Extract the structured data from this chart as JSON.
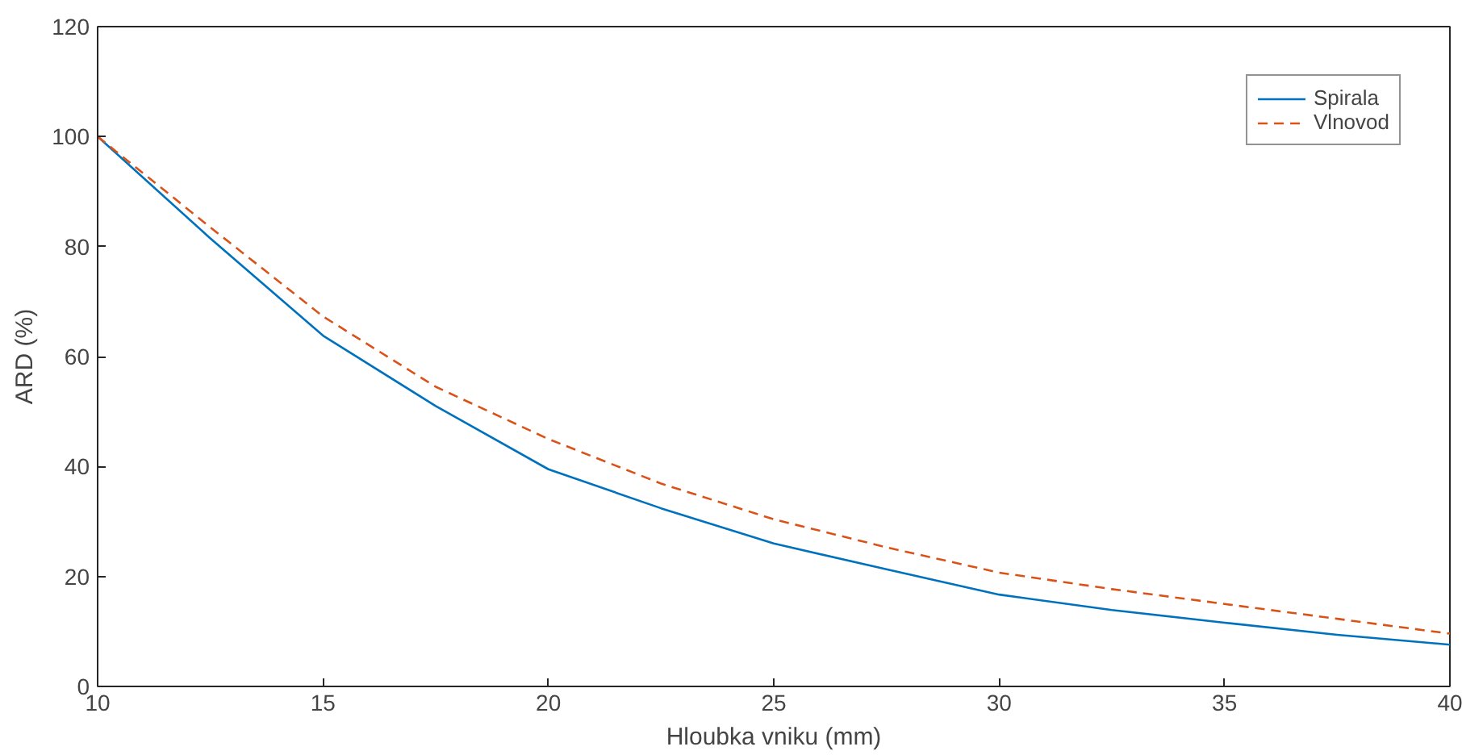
{
  "chart_data": {
    "type": "line",
    "xlabel": "Hloubka vniku (mm)",
    "ylabel": "ARD (%)",
    "x": [
      10,
      12.5,
      15,
      17.5,
      20,
      22.5,
      25,
      27.5,
      30,
      32.5,
      35,
      37.5,
      40
    ],
    "xlim": [
      10,
      40
    ],
    "xticks": [
      10,
      15,
      20,
      25,
      30,
      35,
      40
    ],
    "ylim": [
      0,
      120
    ],
    "yticks": [
      0,
      20,
      40,
      60,
      80,
      100,
      120
    ],
    "series": [
      {
        "name": "Spirala",
        "color": "#0072bd",
        "line_style": "solid",
        "values": [
          100,
          81.5,
          63.8,
          51,
          39.5,
          32.4,
          26,
          21.3,
          16.7,
          13.9,
          11.6,
          9.4,
          7.6
        ]
      },
      {
        "name": "Vlnovod",
        "color": "#d95319",
        "line_style": "dashed",
        "values": [
          100,
          83.5,
          67.3,
          54.5,
          45,
          36.9,
          30.4,
          25.3,
          20.7,
          17.7,
          15.0,
          12.3,
          9.6
        ]
      }
    ],
    "grid": false,
    "legend": "top right",
    "marker": "none"
  }
}
